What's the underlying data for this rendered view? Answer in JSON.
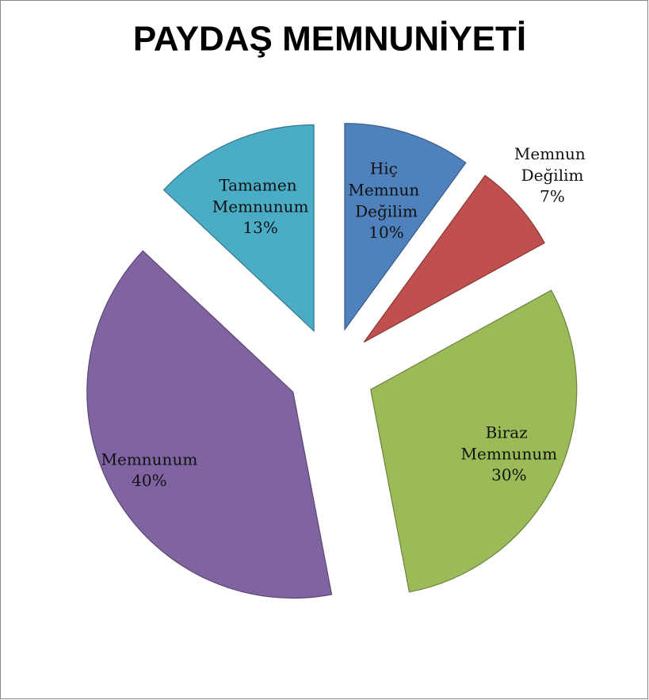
{
  "chart_data": {
    "type": "pie",
    "title": "PAYDAŞ MEMNUNİYETİ",
    "categories": [
      "Hiç Memnun Değilim",
      "Memnun Değilim",
      "Biraz Memnunum",
      "Memnunum",
      "Tamamen Memnunum"
    ],
    "values": [
      10,
      7,
      30,
      40,
      13
    ],
    "value_labels": [
      "10%",
      "7%",
      "30%",
      "40%",
      "13%"
    ],
    "colors": [
      "#4f81bd",
      "#c0504d",
      "#9bbb59",
      "#8064a2",
      "#4bacc6"
    ]
  }
}
